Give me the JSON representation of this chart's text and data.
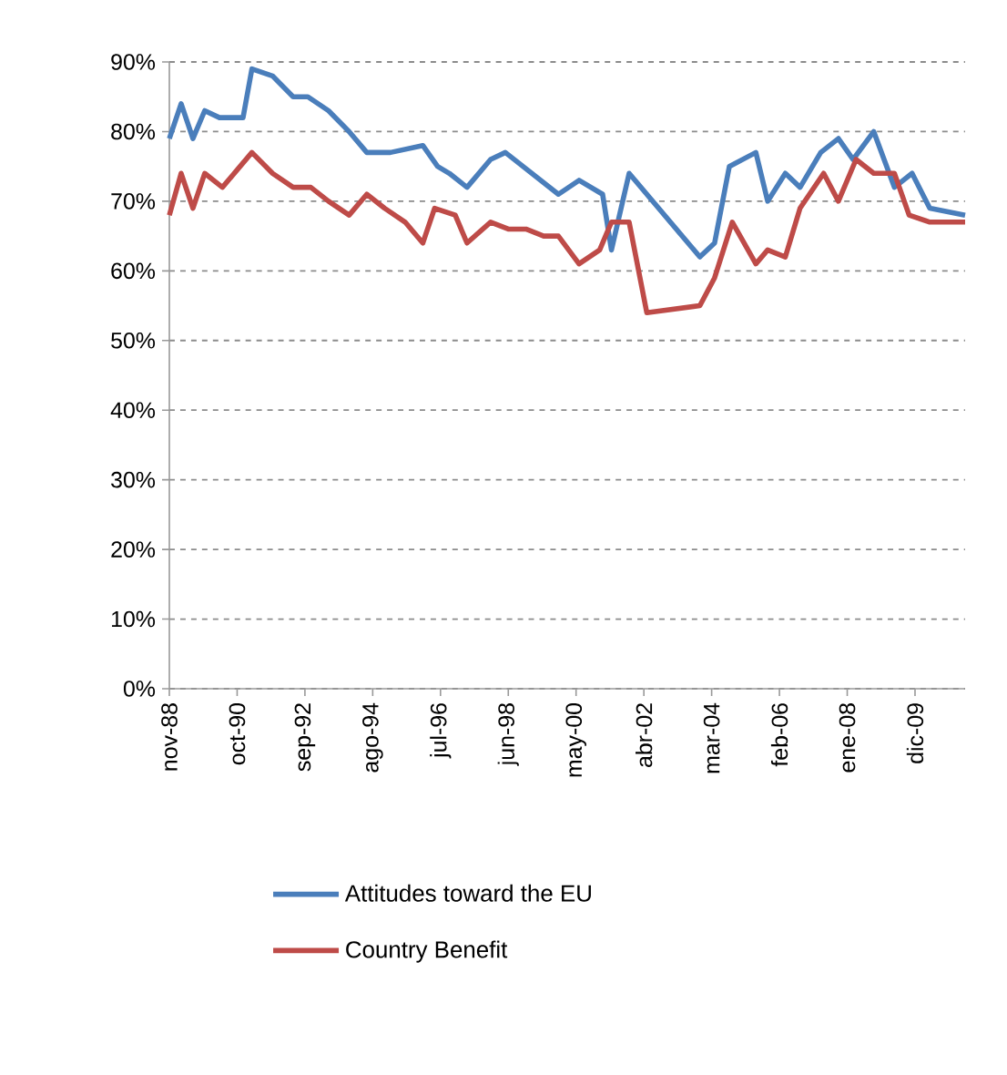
{
  "chart_data": {
    "type": "line",
    "xlim": [
      "1988-11",
      "2011-05"
    ],
    "xticks": [
      {
        "value": "1988-11",
        "label": "nov-88"
      },
      {
        "value": "1990-10",
        "label": "oct-90"
      },
      {
        "value": "1992-09",
        "label": "sep-92"
      },
      {
        "value": "1994-08",
        "label": "ago-94"
      },
      {
        "value": "1996-07",
        "label": "jul-96"
      },
      {
        "value": "1998-06",
        "label": "jun-98"
      },
      {
        "value": "2000-05",
        "label": "may-00"
      },
      {
        "value": "2002-04",
        "label": "abr-02"
      },
      {
        "value": "2004-03",
        "label": "mar-04"
      },
      {
        "value": "2006-02",
        "label": "feb-06"
      },
      {
        "value": "2008-01",
        "label": "ene-08"
      },
      {
        "value": "2009-12",
        "label": "dic-09"
      }
    ],
    "ylim": [
      0,
      90
    ],
    "yticks": [
      {
        "value": 0,
        "label": "0%"
      },
      {
        "value": 10,
        "label": "10%"
      },
      {
        "value": 20,
        "label": "20%"
      },
      {
        "value": 30,
        "label": "30%"
      },
      {
        "value": 40,
        "label": "40%"
      },
      {
        "value": 50,
        "label": "50%"
      },
      {
        "value": 60,
        "label": "60%"
      },
      {
        "value": 70,
        "label": "70%"
      },
      {
        "value": 80,
        "label": "80%"
      },
      {
        "value": 90,
        "label": "90%"
      }
    ],
    "grid": "y",
    "legend": "bottom",
    "marker": "none",
    "line_style": "solid",
    "series": [
      {
        "name": "Attitudes toward the EU",
        "color": "#4a7ebb",
        "x": [
          "1988-11",
          "1989-03",
          "1989-07",
          "1989-11",
          "1990-04",
          "1990-12",
          "1991-03",
          "1991-10",
          "1992-05",
          "1992-10",
          "1993-05",
          "1993-12",
          "1994-06",
          "1995-02",
          "1996-01",
          "1996-06",
          "1996-10",
          "1997-04",
          "1997-12",
          "1998-05",
          "1998-11",
          "1999-05",
          "1999-11",
          "2000-06",
          "2001-02",
          "2001-05",
          "2001-11",
          "2003-11",
          "2004-04",
          "2004-09",
          "2005-06",
          "2005-10",
          "2006-04",
          "2006-09",
          "2007-04",
          "2007-10",
          "2008-03",
          "2008-10",
          "2009-05",
          "2009-11",
          "2010-05",
          "2011-05"
        ],
        "values": [
          79,
          84,
          79,
          83,
          82,
          82,
          89,
          88,
          85,
          85,
          83,
          80,
          77,
          77,
          78,
          75,
          74,
          72,
          76,
          77,
          75,
          73,
          71,
          73,
          71,
          63,
          74,
          62,
          64,
          75,
          77,
          70,
          74,
          72,
          77,
          79,
          76,
          80,
          72,
          74,
          69,
          68
        ]
      },
      {
        "name": "Country Benefit",
        "color": "#be4b48",
        "x": [
          "1988-11",
          "1989-03",
          "1989-07",
          "1989-11",
          "1990-05",
          "1991-03",
          "1991-10",
          "1992-05",
          "1992-11",
          "1993-05",
          "1993-12",
          "1994-06",
          "1994-12",
          "1995-07",
          "1996-01",
          "1996-05",
          "1996-12",
          "1997-04",
          "1997-12",
          "1998-06",
          "1998-12",
          "1999-06",
          "1999-11",
          "2000-06",
          "2001-01",
          "2001-05",
          "2001-11",
          "2002-05",
          "2003-11",
          "2004-04",
          "2004-10",
          "2005-06",
          "2005-10",
          "2006-04",
          "2006-09",
          "2007-05",
          "2007-10",
          "2008-04",
          "2008-10",
          "2009-05",
          "2009-10",
          "2010-05",
          "2011-05"
        ],
        "values": [
          68,
          74,
          69,
          74,
          72,
          77,
          74,
          72,
          72,
          70,
          68,
          71,
          69,
          67,
          64,
          69,
          68,
          64,
          67,
          66,
          66,
          65,
          65,
          61,
          63,
          67,
          67,
          54,
          55,
          59,
          67,
          61,
          63,
          62,
          69,
          74,
          70,
          76,
          74,
          74,
          68,
          67,
          67
        ]
      }
    ]
  }
}
